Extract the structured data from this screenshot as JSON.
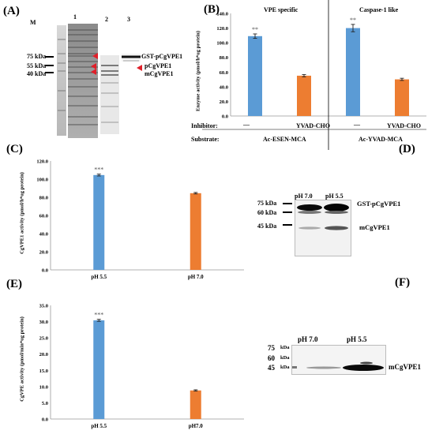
{
  "panels": {
    "A": {
      "label": "(A)",
      "marker_label": "M",
      "lane_labels": [
        "1",
        "2",
        "3"
      ],
      "mw_labels": [
        "75 kDa",
        "55 kDa",
        "40 kDa"
      ],
      "band_labels": [
        "GST-pCgVPE1",
        "pCgVPE1",
        "mCgVPE1"
      ]
    },
    "B": {
      "label": "(B)",
      "section_titles": [
        "VPE specific",
        "Caspase-1 like"
      ],
      "row_labels": {
        "inhibitor": "Inhibitor:",
        "substrate": "Substrate:"
      },
      "inhibitors": [
        "—",
        "YVAD-CHO",
        "—",
        "YVAD-CHO"
      ],
      "substrates": [
        "Ac-ESEN-MCA",
        "Ac-YVAD-MCA"
      ]
    },
    "C": {
      "label": "(C)"
    },
    "D": {
      "label": "(D)",
      "lane_labels": [
        "pH 7.0",
        "pH 5.5"
      ],
      "mw_labels": [
        "75 kDa",
        "60 kDa",
        "45 kDa"
      ],
      "band_labels": [
        "GST-pCgVPE1",
        "mCgVPE1"
      ]
    },
    "E": {
      "label": "(E)"
    },
    "F": {
      "label": "(F)",
      "lane_labels": [
        "pH 7.0",
        "pH 5.5"
      ],
      "mw_numbers": [
        "75",
        "60",
        "45"
      ],
      "mw_unit": "kDa",
      "band_label": "mCgVPE1"
    }
  },
  "chart_data": [
    {
      "panel": "B",
      "type": "bar",
      "categories": [
        "—",
        "YVAD-CHO",
        "—",
        "YVAD-CHO"
      ],
      "values": [
        109,
        55,
        120,
        50
      ],
      "errors": [
        3,
        1.5,
        5,
        1.5
      ],
      "significance": [
        "**",
        "",
        "**",
        ""
      ],
      "colors": [
        "#5b9bd5",
        "#ed7d31",
        "#5b9bd5",
        "#ed7d31"
      ],
      "ylabel": "Enzyme activity (pmol/h*ug protein)",
      "ylim": [
        0,
        140
      ],
      "yticks": [
        "0.0",
        "20.0",
        "40.0",
        "60.0",
        "80.0",
        "100.0",
        "120.0",
        "140.0"
      ]
    },
    {
      "panel": "C",
      "type": "bar",
      "categories": [
        "pH 5.5",
        "pH 7.0"
      ],
      "values": [
        104.5,
        84.5
      ],
      "errors": [
        1,
        0.8
      ],
      "significance": [
        "***",
        ""
      ],
      "colors": [
        "#5b9bd5",
        "#ed7d31"
      ],
      "ylabel": "CgVPE1 activity (pmol/h*ug protein)",
      "ylim": [
        0,
        120
      ],
      "yticks": [
        "0.0",
        "20.0",
        "40.0",
        "60.0",
        "80.0",
        "100.0",
        "120.0"
      ]
    },
    {
      "panel": "E",
      "type": "bar",
      "categories": [
        "pH 5.5",
        "pH7.0"
      ],
      "values": [
        30.4,
        8.8
      ],
      "errors": [
        0.3,
        0.2
      ],
      "significance": [
        "***",
        ""
      ],
      "colors": [
        "#5b9bd5",
        "#ed7d31"
      ],
      "ylabel": "CgVPE activity (pmol/min*ug protein)",
      "ylim": [
        0,
        35
      ],
      "yticks": [
        "0.0",
        "5.0",
        "10.0",
        "15.0",
        "20.0",
        "25.0",
        "30.0",
        "35.0"
      ]
    }
  ]
}
